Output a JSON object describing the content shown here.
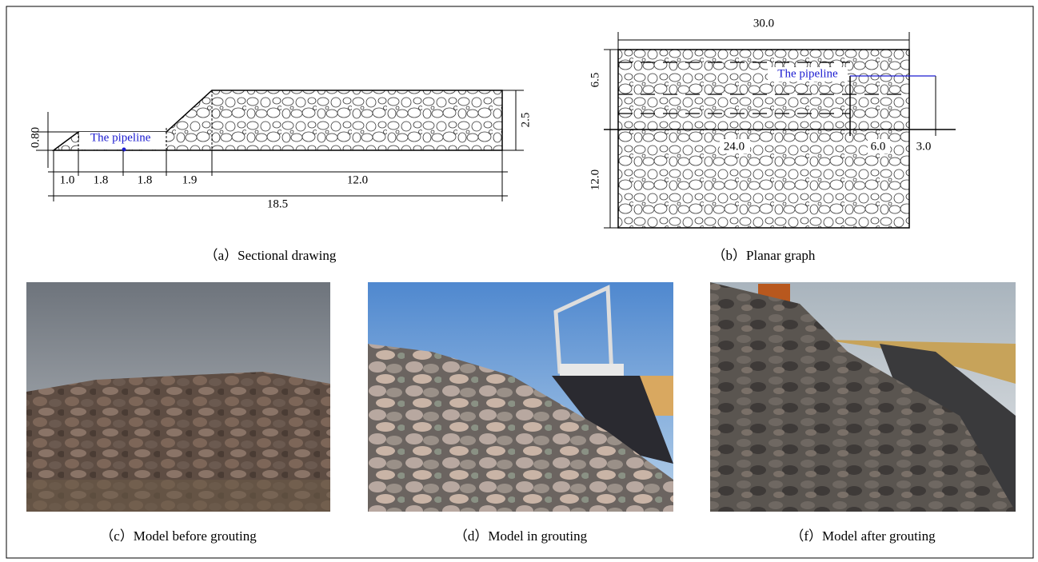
{
  "sectional": {
    "pipeline_label": "The pipeline",
    "dimensions": [
      "0.80",
      "2.5",
      "1.0",
      "1.8",
      "1.8",
      "1.9",
      "12.0",
      "18.5"
    ],
    "caption": "（a）Sectional drawing"
  },
  "planar": {
    "pipeline_label": "The pipeline",
    "dimensions": [
      "30.0",
      "6.5",
      "12.0",
      "24.0",
      "6.0",
      "3.0"
    ],
    "caption": "（b）Planar graph"
  },
  "photos": [
    {
      "caption": "（c）Model before grouting"
    },
    {
      "caption": "（d）Model in grouting"
    },
    {
      "caption": "（f）Model after grouting"
    }
  ]
}
